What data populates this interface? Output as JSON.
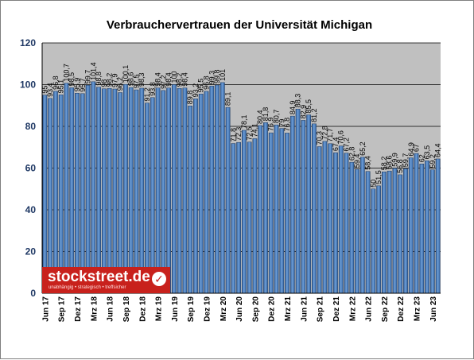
{
  "chart_data": {
    "type": "bar",
    "title": "Verbrauchervertrauen der Universität Michigan",
    "xlabel": "",
    "ylabel": "",
    "ylim": [
      0,
      120
    ],
    "yticks": [
      0,
      20,
      40,
      60,
      80,
      100,
      120
    ],
    "grid": "horizontal",
    "legend": "none",
    "colors": {
      "bar": "#4a7ebb",
      "bar_edge": "#1f3a5f",
      "plot_bg": "#c0c0c0",
      "axis_text": "#1f3864"
    },
    "x_tick_labels": [
      "Jun 17",
      "Sep 17",
      "Dez 17",
      "Mrz 18",
      "Jun 18",
      "Sep 18",
      "Dez 18",
      "Mrz 19",
      "Jun 19",
      "Sep 19",
      "Dez 19",
      "Mrz 20",
      "Jun 20",
      "Sep 20",
      "Dez 20",
      "Mrz 21",
      "Jun 21",
      "Sep 21",
      "Dez 21",
      "Mrz 22",
      "Jun 22",
      "Sep 22",
      "Dez 22",
      "Mrz 23",
      "Jun 23"
    ],
    "values": [
      95,
      93.4,
      96.8,
      95.1,
      100.7,
      98.5,
      95.9,
      95.7,
      99.7,
      101.4,
      98.8,
      98,
      98.2,
      97.9,
      96.2,
      100.1,
      98.6,
      97.5,
      98.3,
      91.2,
      93.8,
      98.4,
      97.2,
      98.4,
      100,
      98.2,
      98.4,
      89.8,
      93.2,
      95.5,
      96.8,
      99.3,
      99.8,
      101,
      89.1,
      71.8,
      72.3,
      78.1,
      72.5,
      74.1,
      80.4,
      81.8,
      76.9,
      80.7,
      79,
      76.8,
      84.9,
      88.3,
      82.9,
      85.5,
      81.2,
      70.3,
      72.8,
      71.7,
      67.4,
      70.6,
      67.2,
      62.8,
      59.4,
      65.2,
      58.4,
      50,
      51.5,
      58.2,
      58.6,
      59.9,
      56.8,
      59.7,
      64.9,
      67,
      62,
      63.5,
      59.2,
      64.4
    ],
    "data_labels": [
      "95",
      "93,4",
      "96,8",
      "95,1",
      "100,7",
      "98,5",
      "95,9",
      "95,7",
      "99,7",
      "101,4",
      "98,8",
      "98",
      "98,2",
      "97,9",
      "96,2",
      "100,1",
      "98,6",
      "97,5",
      "98,3",
      "91,2",
      "93,8",
      "98,4",
      "97,2",
      "98,4",
      "100",
      "98,2",
      "98,4",
      "89,8",
      "93,2",
      "95,5",
      "96,8",
      "99,3",
      "99,8",
      "101",
      "89,1",
      "71,8",
      "72,3",
      "78,1",
      "72,5",
      "74,1",
      "80,4",
      "81,8",
      "76,9",
      "80,7",
      "79",
      "76,8",
      "84,9",
      "88,3",
      "82,9",
      "85,5",
      "81,2",
      "70,3",
      "72,8",
      "71,7",
      "67,4",
      "70,6",
      "67,2",
      "62,8",
      "59,4",
      "65,2",
      "58,4",
      "50",
      "51,5",
      "58,2",
      "58,6",
      "59,9",
      "56,8",
      "59,7",
      "64,9",
      "67",
      "62",
      "63,5",
      "59,2",
      "64,4"
    ]
  },
  "logo": {
    "text": "stockstreet.de",
    "tagline": "unabhängig • strategisch • treffsicher",
    "check_icon": "✓"
  }
}
